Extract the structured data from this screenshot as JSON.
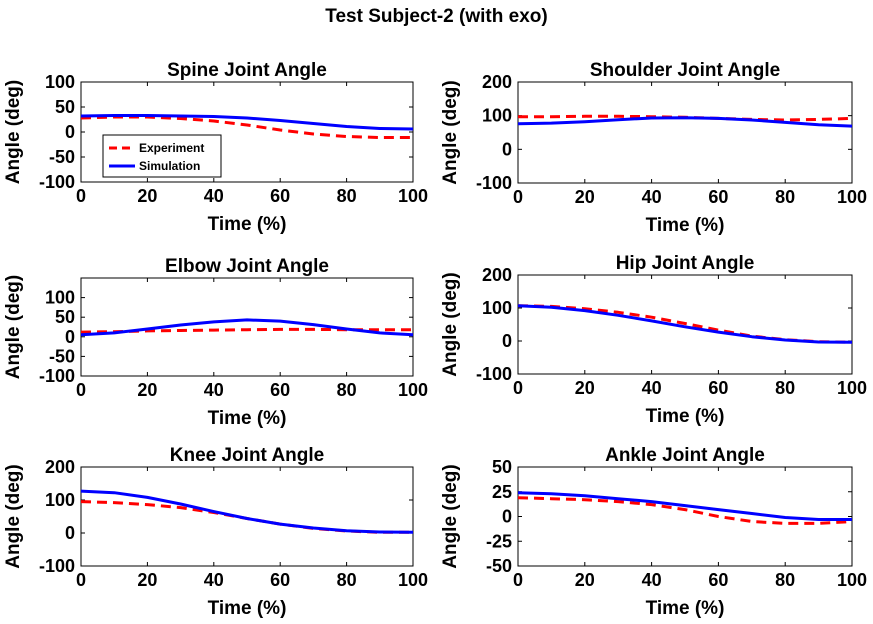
{
  "figure": {
    "title": "Test Subject-2 (with exo)"
  },
  "legend": {
    "experiment_label": "Experiment",
    "simulation_label": "Simulation",
    "experiment_color": "#ff0000",
    "simulation_color": "#0000ff"
  },
  "chart_data": [
    {
      "type": "line",
      "title": "Spine Joint Angle",
      "xlabel": "Time (%)",
      "ylabel": "Angle (deg)",
      "xlim": [
        0,
        100
      ],
      "ylim": [
        -100,
        100
      ],
      "xticks": [
        0,
        20,
        40,
        60,
        80,
        100
      ],
      "yticks": [
        -100,
        -50,
        0,
        50,
        100
      ],
      "legend": "bottom-left",
      "x": [
        0,
        10,
        20,
        30,
        40,
        50,
        60,
        70,
        80,
        90,
        100
      ],
      "series": [
        {
          "name": "Experiment",
          "style": "dashed",
          "color": "#ff0000",
          "values": [
            28,
            30,
            30,
            27,
            22,
            14,
            4,
            -4,
            -9,
            -11,
            -11
          ]
        },
        {
          "name": "Simulation",
          "style": "solid",
          "color": "#0000ff",
          "values": [
            32,
            33,
            33,
            32,
            31,
            28,
            23,
            17,
            11,
            7,
            6
          ]
        }
      ]
    },
    {
      "type": "line",
      "title": "Shoulder Joint Angle",
      "xlabel": "Time (%)",
      "ylabel": "Angle (deg)",
      "xlim": [
        0,
        100
      ],
      "ylim": [
        -100,
        200
      ],
      "xticks": [
        0,
        20,
        40,
        60,
        80,
        100
      ],
      "yticks": [
        -100,
        0,
        100,
        200
      ],
      "x": [
        0,
        10,
        20,
        30,
        40,
        50,
        60,
        70,
        80,
        90,
        100
      ],
      "series": [
        {
          "name": "Experiment",
          "style": "dashed",
          "color": "#ff0000",
          "values": [
            97,
            97,
            98,
            98,
            97,
            95,
            92,
            89,
            87,
            89,
            92
          ]
        },
        {
          "name": "Simulation",
          "style": "solid",
          "color": "#0000ff",
          "values": [
            76,
            78,
            82,
            88,
            93,
            94,
            92,
            87,
            80,
            73,
            69
          ]
        }
      ]
    },
    {
      "type": "line",
      "title": "Elbow Joint Angle",
      "xlabel": "Time (%)",
      "ylabel": "Angle (deg)",
      "xlim": [
        0,
        100
      ],
      "ylim": [
        -100,
        150
      ],
      "xticks": [
        0,
        20,
        40,
        60,
        80,
        100
      ],
      "yticks": [
        -100,
        -50,
        0,
        50,
        100
      ],
      "x": [
        0,
        10,
        20,
        30,
        40,
        50,
        60,
        70,
        80,
        90,
        100
      ],
      "series": [
        {
          "name": "Experiment",
          "style": "dashed",
          "color": "#ff0000",
          "values": [
            12,
            13,
            15,
            16,
            17,
            18,
            19,
            19,
            18,
            18,
            18
          ]
        },
        {
          "name": "Simulation",
          "style": "solid",
          "color": "#0000ff",
          "values": [
            5,
            10,
            20,
            30,
            38,
            43,
            40,
            31,
            20,
            10,
            5
          ]
        }
      ]
    },
    {
      "type": "line",
      "title": "Hip Joint Angle",
      "xlabel": "Time (%)",
      "ylabel": "Angle (deg)",
      "xlim": [
        0,
        100
      ],
      "ylim": [
        -100,
        200
      ],
      "xticks": [
        0,
        20,
        40,
        60,
        80,
        100
      ],
      "yticks": [
        -100,
        0,
        100,
        200
      ],
      "x": [
        0,
        10,
        20,
        30,
        40,
        50,
        60,
        70,
        80,
        90,
        100
      ],
      "series": [
        {
          "name": "Experiment",
          "style": "dashed",
          "color": "#ff0000",
          "values": [
            107,
            105,
            98,
            87,
            72,
            53,
            33,
            15,
            4,
            -2,
            -4
          ]
        },
        {
          "name": "Simulation",
          "style": "solid",
          "color": "#0000ff",
          "values": [
            107,
            102,
            92,
            78,
            61,
            43,
            27,
            13,
            3,
            -3,
            -4
          ]
        }
      ]
    },
    {
      "type": "line",
      "title": "Knee Joint Angle",
      "xlabel": "Time (%)",
      "ylabel": "Angle (deg)",
      "xlim": [
        0,
        100
      ],
      "ylim": [
        -100,
        200
      ],
      "xticks": [
        0,
        20,
        40,
        60,
        80,
        100
      ],
      "yticks": [
        -100,
        0,
        100,
        200
      ],
      "x": [
        0,
        10,
        20,
        30,
        40,
        50,
        60,
        70,
        80,
        90,
        100
      ],
      "series": [
        {
          "name": "Experiment",
          "style": "dashed",
          "color": "#ff0000",
          "values": [
            95,
            92,
            86,
            77,
            62,
            44,
            27,
            14,
            6,
            2,
            2
          ]
        },
        {
          "name": "Simulation",
          "style": "solid",
          "color": "#0000ff",
          "values": [
            127,
            122,
            108,
            88,
            65,
            44,
            27,
            15,
            7,
            3,
            2
          ]
        }
      ]
    },
    {
      "type": "line",
      "title": "Ankle Joint Angle",
      "xlabel": "Time (%)",
      "ylabel": "Angle (deg)",
      "xlim": [
        0,
        100
      ],
      "ylim": [
        -50,
        50
      ],
      "xticks": [
        0,
        20,
        40,
        60,
        80,
        100
      ],
      "yticks": [
        -50,
        -25,
        0,
        25,
        50
      ],
      "x": [
        0,
        10,
        20,
        30,
        40,
        50,
        60,
        70,
        80,
        90,
        100
      ],
      "series": [
        {
          "name": "Experiment",
          "style": "dashed",
          "color": "#ff0000",
          "values": [
            19,
            18,
            17,
            15,
            12,
            7,
            0,
            -5,
            -7,
            -7,
            -5
          ]
        },
        {
          "name": "Simulation",
          "style": "solid",
          "color": "#0000ff",
          "values": [
            24,
            23,
            21,
            18,
            15,
            11,
            7,
            3,
            -1,
            -3,
            -3
          ]
        }
      ]
    }
  ]
}
